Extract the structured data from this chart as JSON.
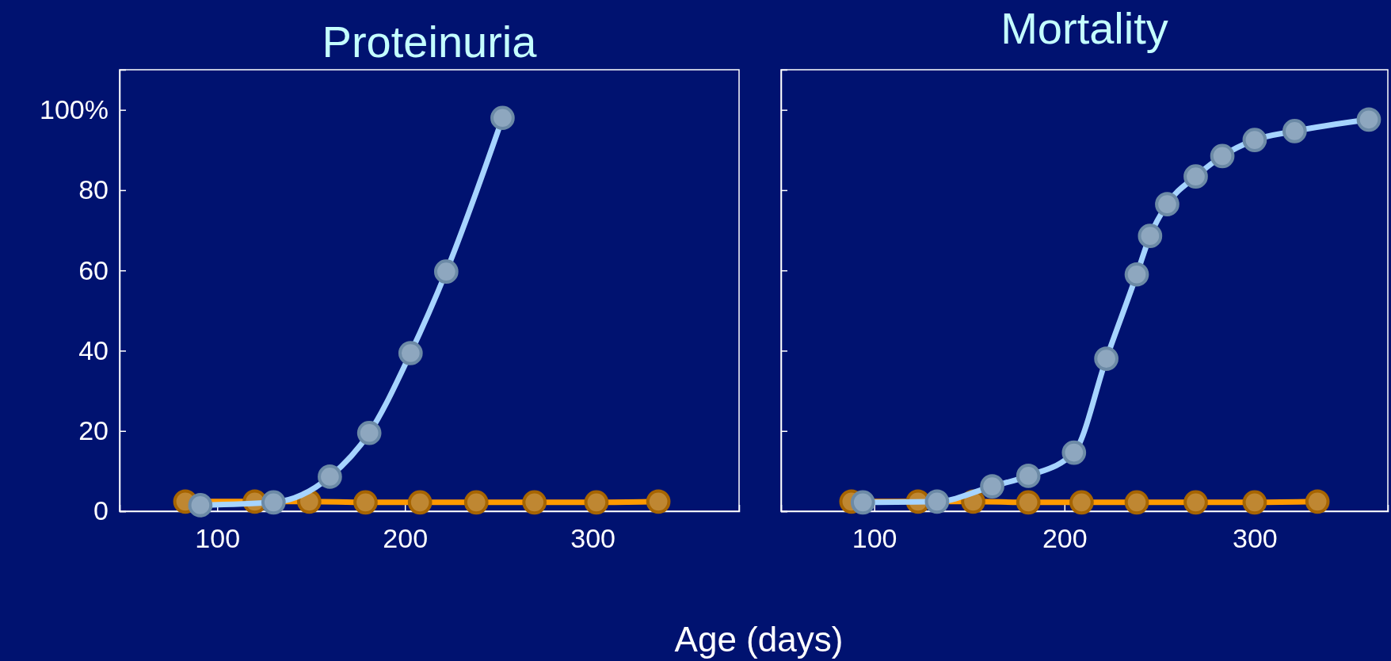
{
  "chart_data": [
    {
      "type": "line",
      "title": "Proteinuria",
      "xlabel": "Age (days)",
      "xlim": [
        48,
        378
      ],
      "ylim": [
        0,
        110
      ],
      "xticks": [
        100,
        200,
        300
      ],
      "yticks": [
        0,
        20,
        40,
        60,
        80,
        {
          "value": 100,
          "label": "100%"
        }
      ],
      "grid": false,
      "marker": "circle",
      "line_style": "solid",
      "series": [
        {
          "color": "#a6d4ff",
          "x": [
            91,
            130,
            160,
            181,
            203,
            222,
            252
          ],
          "values": [
            1.5,
            2.2,
            8.6,
            19.5,
            39.4,
            59.7,
            98
          ]
        },
        {
          "color": "#ff9900",
          "x": [
            83,
            120,
            149,
            179,
            208,
            238,
            269,
            302,
            335
          ],
          "values": [
            2.4,
            2.4,
            2.4,
            2.2,
            2.2,
            2.2,
            2.2,
            2.2,
            2.4
          ]
        }
      ]
    },
    {
      "type": "line",
      "title": "Mortality",
      "xlim": [
        51,
        370
      ],
      "ylim": [
        0,
        110
      ],
      "xticks": [
        100,
        200,
        300
      ],
      "yticks": [
        0,
        20,
        40,
        60,
        80,
        {
          "value": 100,
          "label": null
        }
      ],
      "tick_labels": "x",
      "grid": false,
      "marker": "circle",
      "line_style": "solid",
      "series": [
        {
          "color": "#a6d4ff",
          "x": [
            94,
            133,
            162,
            181,
            205,
            222,
            238,
            245,
            254,
            269,
            283,
            300,
            321,
            360
          ],
          "values": [
            2.2,
            2.4,
            6.2,
            8.8,
            14.6,
            38,
            59,
            68.6,
            76.5,
            83.4,
            88.5,
            92.5,
            94.7,
            97.6
          ]
        },
        {
          "color": "#ff9900",
          "x": [
            88,
            123,
            152,
            181,
            209,
            238,
            269,
            300,
            333
          ],
          "values": [
            2.4,
            2.4,
            2.4,
            2.2,
            2.2,
            2.2,
            2.2,
            2.2,
            2.4
          ]
        }
      ]
    }
  ]
}
